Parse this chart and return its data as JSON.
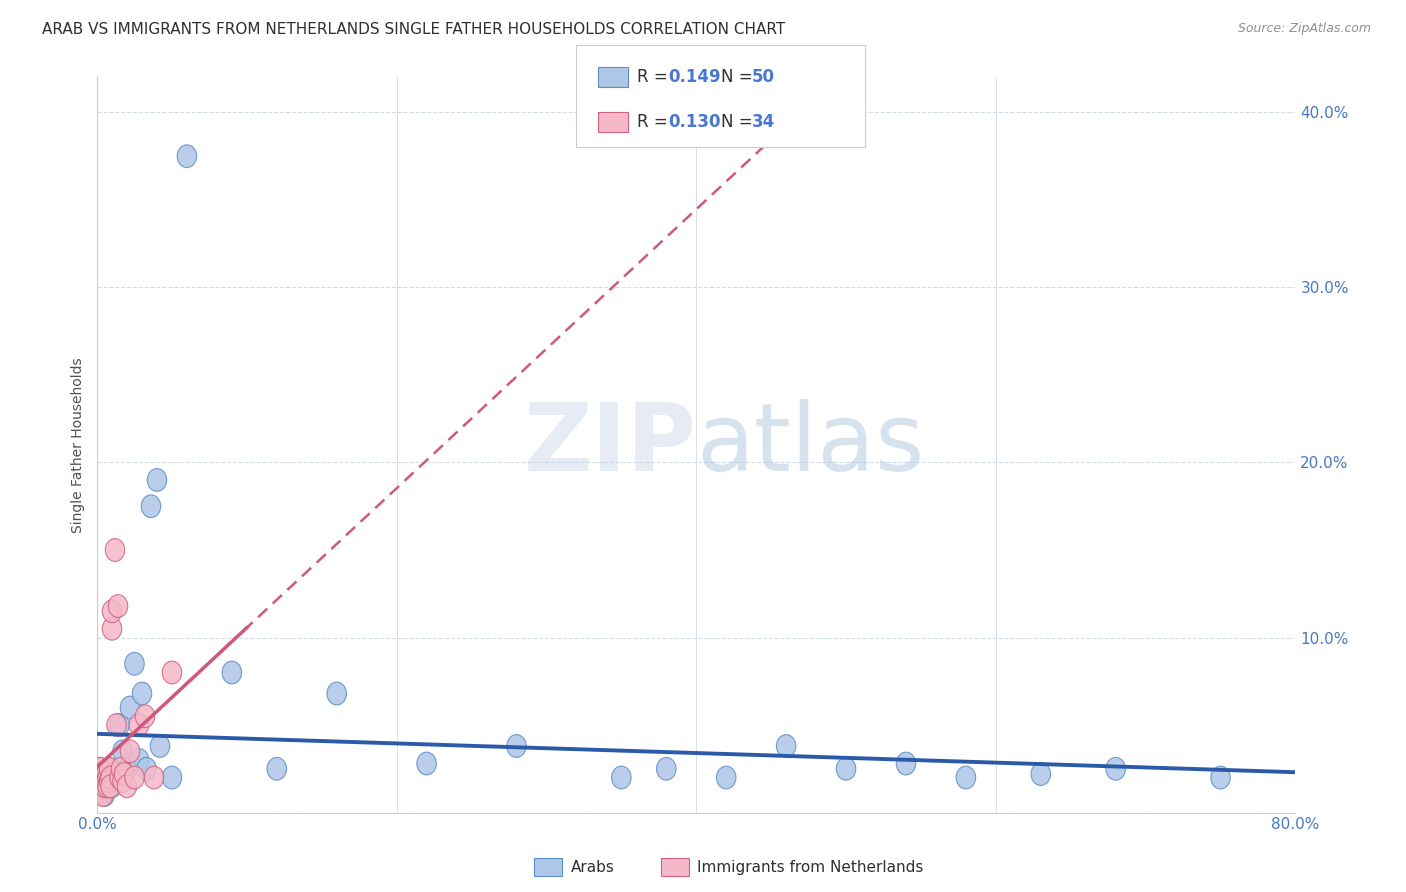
{
  "title": "ARAB VS IMMIGRANTS FROM NETHERLANDS SINGLE FATHER HOUSEHOLDS CORRELATION CHART",
  "source": "Source: ZipAtlas.com",
  "ylabel": "Single Father Households",
  "watermark_zip": "ZIP",
  "watermark_atlas": "atlas",
  "xlim": [
    0,
    0.8
  ],
  "ylim": [
    0,
    0.42
  ],
  "xticks": [
    0.0,
    0.2,
    0.4,
    0.6,
    0.8
  ],
  "xtick_labels": [
    "0.0%",
    "",
    "",
    "",
    "80.0%"
  ],
  "ytick_labels_right": [
    "",
    "10.0%",
    "20.0%",
    "30.0%",
    "40.0%"
  ],
  "arab_color": "#aec6e8",
  "arab_edge_color": "#5b8ec4",
  "arab_line_color": "#2b5ba8",
  "neth_color": "#f5b8c8",
  "neth_edge_color": "#d06080",
  "neth_line_color": "#d05878",
  "background_color": "#ffffff",
  "grid_color": "#d4dce8",
  "title_color": "#303030",
  "source_color": "#909090",
  "tick_color": "#4878c0",
  "arab_x": [
    0.001,
    0.002,
    0.002,
    0.003,
    0.003,
    0.004,
    0.004,
    0.005,
    0.005,
    0.006,
    0.006,
    0.007,
    0.007,
    0.008,
    0.008,
    0.009,
    0.009,
    0.01,
    0.01,
    0.011,
    0.012,
    0.013,
    0.015,
    0.017,
    0.02,
    0.022,
    0.025,
    0.028,
    0.03,
    0.033,
    0.036,
    0.04,
    0.042,
    0.05,
    0.06,
    0.09,
    0.12,
    0.16,
    0.22,
    0.28,
    0.35,
    0.38,
    0.42,
    0.46,
    0.5,
    0.54,
    0.58,
    0.63,
    0.68,
    0.75
  ],
  "arab_y": [
    0.02,
    0.015,
    0.025,
    0.018,
    0.022,
    0.012,
    0.018,
    0.01,
    0.02,
    0.015,
    0.022,
    0.018,
    0.02,
    0.015,
    0.025,
    0.018,
    0.02,
    0.015,
    0.018,
    0.02,
    0.022,
    0.018,
    0.05,
    0.035,
    0.025,
    0.06,
    0.085,
    0.03,
    0.068,
    0.025,
    0.175,
    0.19,
    0.038,
    0.02,
    0.375,
    0.08,
    0.025,
    0.068,
    0.028,
    0.038,
    0.02,
    0.025,
    0.02,
    0.038,
    0.025,
    0.028,
    0.02,
    0.022,
    0.025,
    0.02
  ],
  "neth_x": [
    0.001,
    0.001,
    0.002,
    0.002,
    0.003,
    0.003,
    0.004,
    0.004,
    0.005,
    0.005,
    0.006,
    0.006,
    0.007,
    0.007,
    0.008,
    0.008,
    0.009,
    0.009,
    0.01,
    0.01,
    0.012,
    0.013,
    0.014,
    0.015,
    0.016,
    0.017,
    0.018,
    0.02,
    0.022,
    0.025,
    0.028,
    0.032,
    0.038,
    0.05
  ],
  "neth_y": [
    0.02,
    0.015,
    0.025,
    0.018,
    0.022,
    0.012,
    0.018,
    0.01,
    0.02,
    0.015,
    0.022,
    0.018,
    0.02,
    0.015,
    0.025,
    0.018,
    0.02,
    0.015,
    0.105,
    0.115,
    0.15,
    0.05,
    0.118,
    0.02,
    0.025,
    0.018,
    0.022,
    0.015,
    0.035,
    0.02,
    0.05,
    0.055,
    0.02,
    0.08
  ],
  "legend_label_arab": "Arabs",
  "legend_label_neth": "Immigrants from Netherlands"
}
